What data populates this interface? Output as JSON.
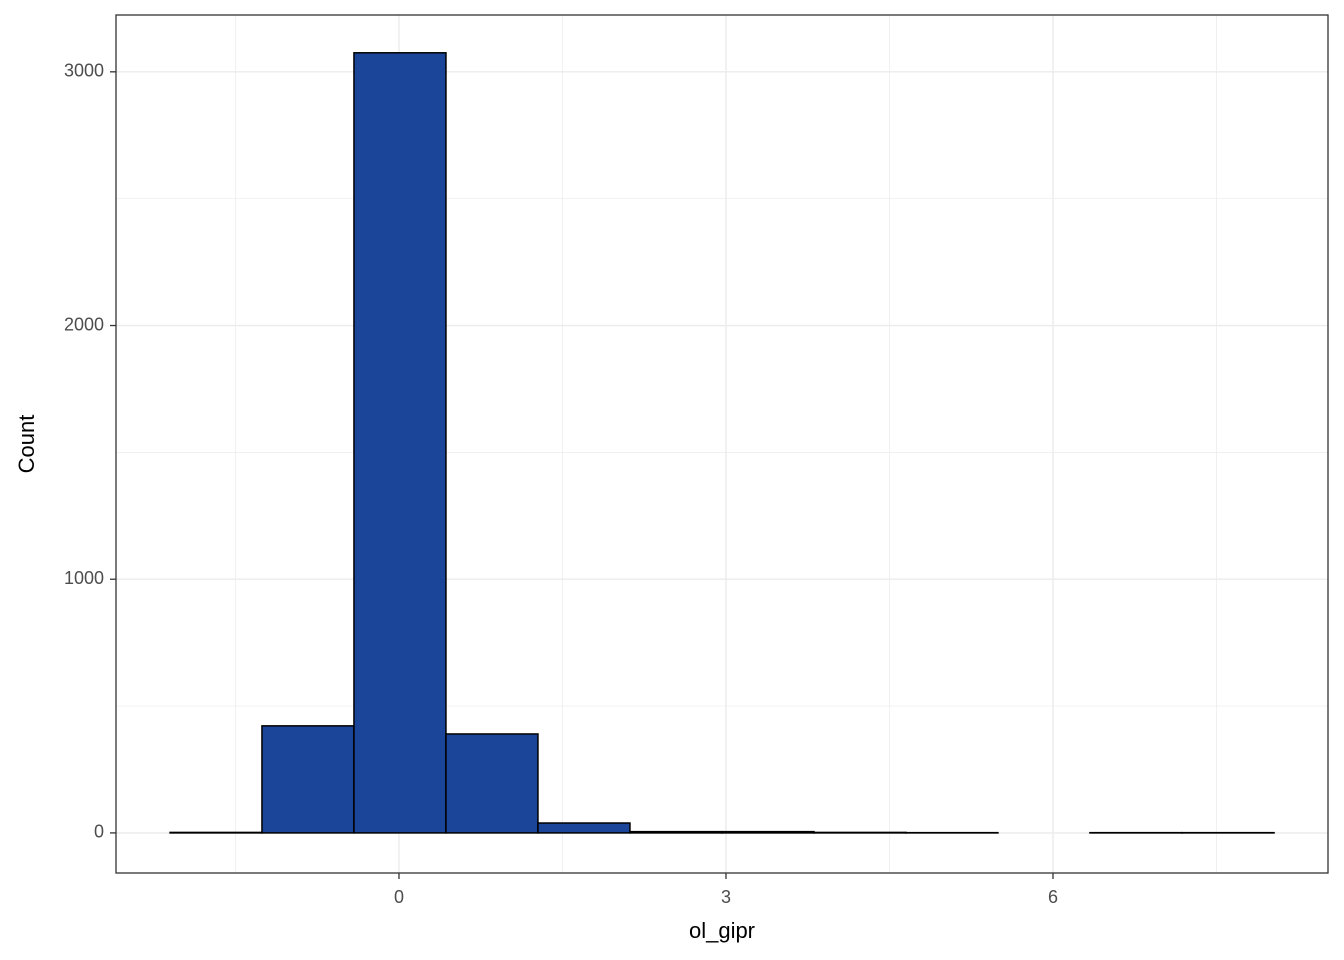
{
  "chart_data": {
    "type": "histogram",
    "x_label": "ol_gipr",
    "y_label": "Count",
    "bins": [
      -2.1,
      -1.257,
      -0.413,
      0.431,
      1.275,
      2.119,
      2.963,
      3.807,
      4.651,
      5.495,
      6.339,
      7.183,
      8.028
    ],
    "values": [
      2,
      422,
      3075,
      390,
      39,
      5,
      5,
      2,
      1,
      0,
      1,
      1
    ],
    "color": "#1a4599",
    "edge_color": "#000000",
    "xlim": [
      -2.596,
      8.523
    ],
    "xticks": [
      0,
      3,
      6
    ],
    "ylim": [
      -158,
      3224
    ],
    "yticks": [
      0,
      1000,
      2000,
      3000
    ],
    "grid": true
  }
}
